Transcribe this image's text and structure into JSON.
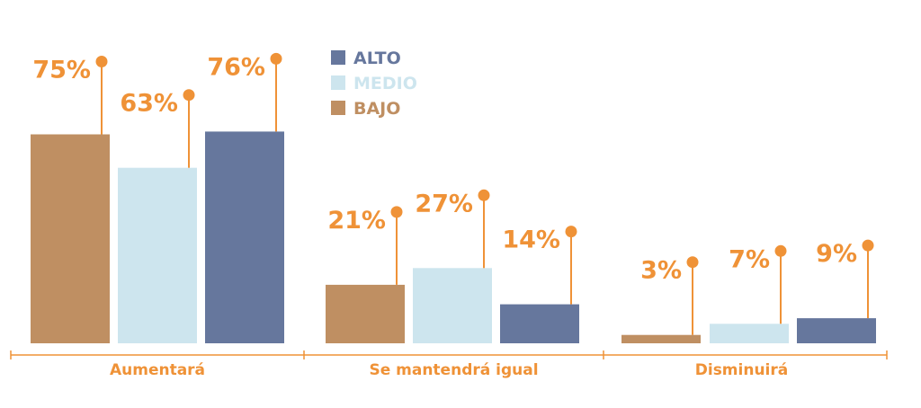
{
  "chart_data": {
    "type": "bar",
    "title": "",
    "xlabel": "",
    "ylabel": "",
    "categories": [
      "Aumentará",
      "Se mantendrá igual",
      "Disminuirá"
    ],
    "series": [
      {
        "name": "BAJO",
        "values": [
          75,
          21,
          3
        ]
      },
      {
        "name": "MEDIO",
        "values": [
          63,
          27,
          7
        ]
      },
      {
        "name": "ALTO",
        "values": [
          76,
          14,
          9
        ]
      }
    ],
    "value_suffix": "%",
    "ylim": [
      0,
      100
    ],
    "grid": false,
    "legend_position": "top-center",
    "legend_order": [
      "ALTO",
      "MEDIO",
      "BAJO"
    ],
    "colors": {
      "BAJO": "#bf8f62",
      "MEDIO": "#cde5ee",
      "ALTO": "#66779d",
      "accent": "#ef9237"
    }
  }
}
